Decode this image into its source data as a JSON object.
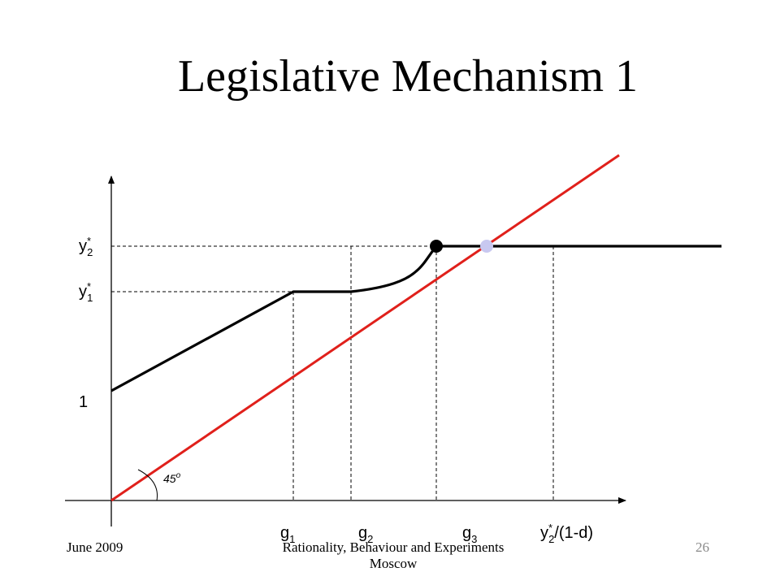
{
  "slide": {
    "title": "Legislative Mechanism 1",
    "footer_left": "June 2009",
    "footer_center_line1": "Rationality, Behaviour and Experiments",
    "footer_center_line2": "Moscow",
    "page_number": "26"
  },
  "diagram": {
    "y_labels": {
      "y2_base": "y",
      "y2_star": "*",
      "y2_sub": "2",
      "y1_base": "y",
      "y1_star": "*",
      "y1_sub": "1",
      "one": "1"
    },
    "x_labels": {
      "g1_base": "g",
      "g1_sub": "1",
      "g2_base": "g",
      "g2_sub": "2",
      "g3_base": "g",
      "g3_sub": "3",
      "ymax_base": "y",
      "ymax_star": "*",
      "ymax_sub": "2",
      "ymax_rest": "/(1-d)"
    },
    "angle_label": {
      "value": "45",
      "degree": "o"
    },
    "colors": {
      "axes": "#000000",
      "black_curve": "#000000",
      "red_line": "#e0201b",
      "black_dot": "#000000",
      "lavender_dot": "#c8c8f0"
    }
  }
}
